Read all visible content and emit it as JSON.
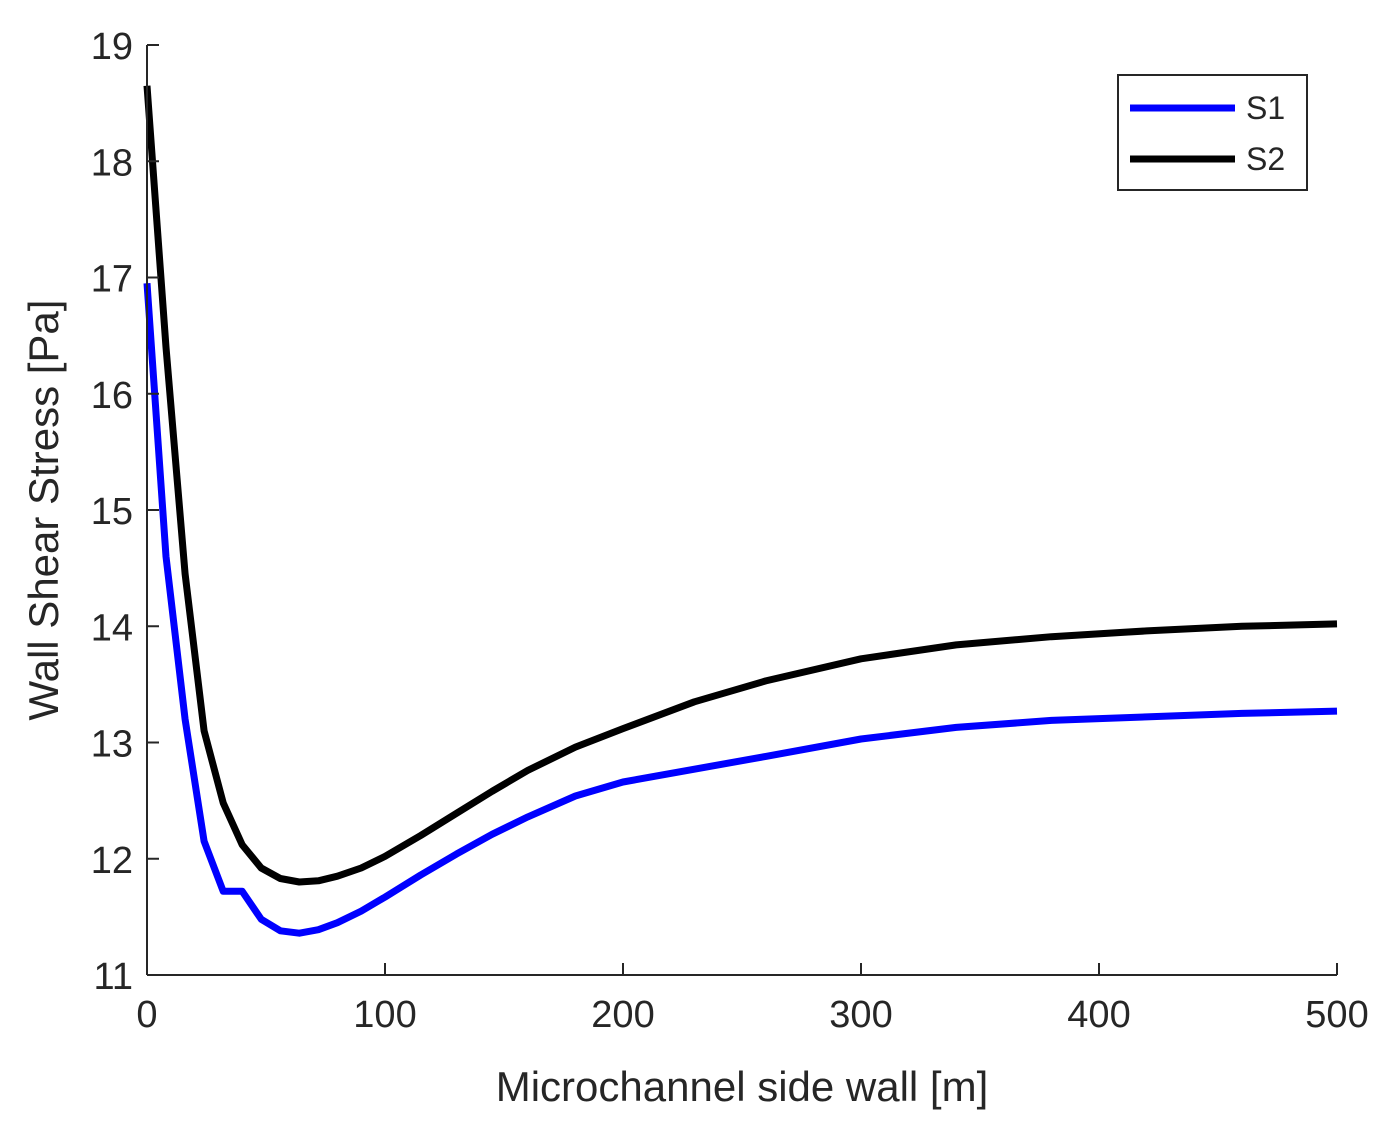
{
  "chart_data": {
    "type": "line",
    "title": "",
    "xlabel": "Microchannel side wall [m]",
    "ylabel": "Wall Shear Stress [Pa]",
    "xlim": [
      0,
      500
    ],
    "ylim": [
      11,
      19
    ],
    "xticks": [
      0,
      100,
      200,
      300,
      400,
      500
    ],
    "yticks": [
      11,
      12,
      13,
      14,
      15,
      16,
      17,
      18,
      19
    ],
    "grid": false,
    "legend_position": "top-right",
    "series": [
      {
        "name": "S1",
        "color": "#0000ff",
        "x": [
          0,
          8,
          16,
          24,
          32,
          40,
          48,
          56,
          64,
          72,
          80,
          90,
          100,
          115,
          130,
          145,
          160,
          180,
          200,
          230,
          260,
          300,
          340,
          380,
          420,
          460,
          500
        ],
        "y": [
          16.95,
          14.6,
          13.2,
          12.15,
          11.72,
          11.72,
          11.48,
          11.38,
          11.36,
          11.39,
          11.45,
          11.55,
          11.67,
          11.86,
          12.04,
          12.21,
          12.36,
          12.54,
          12.66,
          12.77,
          12.88,
          13.03,
          13.13,
          13.19,
          13.22,
          13.25,
          13.27
        ]
      },
      {
        "name": "S2",
        "color": "#000000",
        "x": [
          0,
          8,
          16,
          24,
          32,
          40,
          48,
          56,
          64,
          72,
          80,
          90,
          100,
          115,
          130,
          145,
          160,
          180,
          200,
          230,
          260,
          300,
          340,
          380,
          420,
          460,
          500
        ],
        "y": [
          18.65,
          16.4,
          14.45,
          13.1,
          12.48,
          12.12,
          11.92,
          11.83,
          11.8,
          11.81,
          11.85,
          11.92,
          12.02,
          12.2,
          12.39,
          12.58,
          12.76,
          12.96,
          13.12,
          13.35,
          13.53,
          13.72,
          13.84,
          13.91,
          13.96,
          14.0,
          14.02
        ]
      }
    ]
  }
}
